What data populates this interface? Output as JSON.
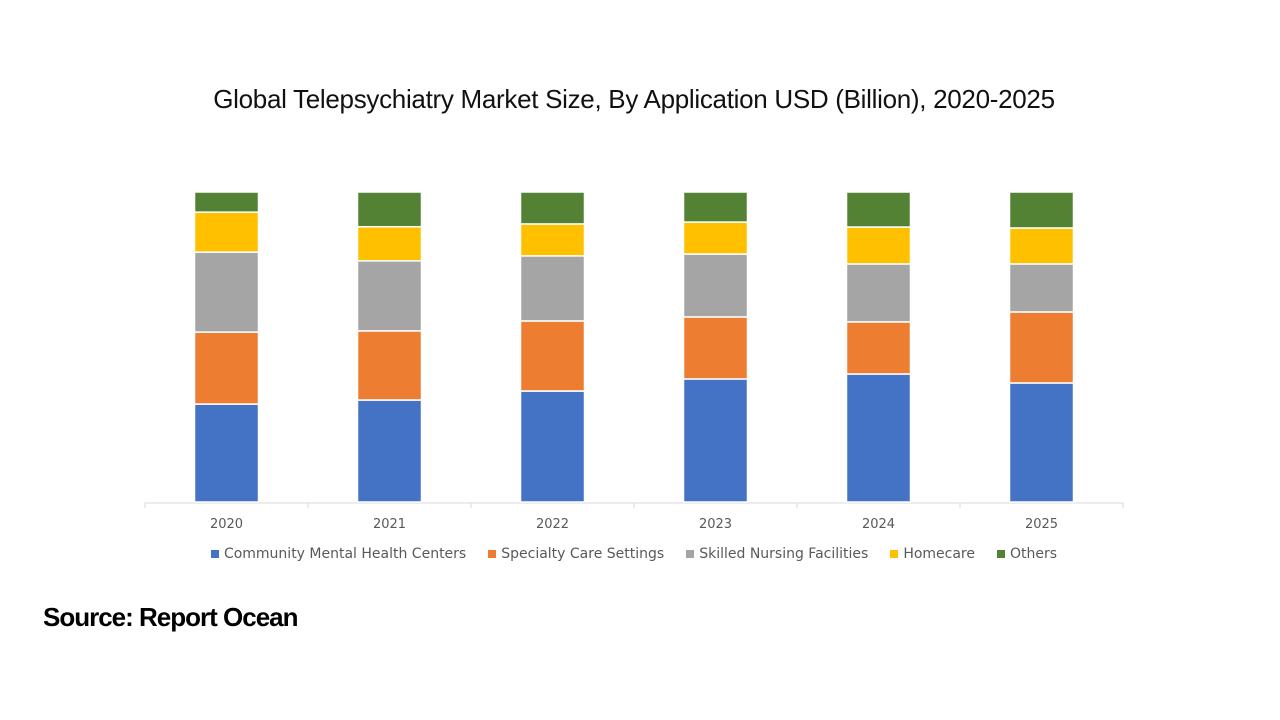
{
  "chart_data": {
    "type": "bar",
    "stacked": true,
    "normalized": true,
    "title": "Global Telepsychiatry Market Size, By Application USD (Billion), 2020-2025",
    "xlabel": "",
    "ylabel": "",
    "ylim": [
      0,
      100
    ],
    "grid": false,
    "legend_position": "bottom",
    "categories": [
      "2020",
      "2021",
      "2022",
      "2023",
      "2024",
      "2025"
    ],
    "series": [
      {
        "name": "Community Mental Health Centers",
        "color": "#4472C4",
        "values": [
          31.6,
          32.9,
          35.8,
          39.7,
          41.3,
          38.4
        ]
      },
      {
        "name": "Specialty Care Settings",
        "color": "#ED7D31",
        "values": [
          23.2,
          22.3,
          22.6,
          20.0,
          16.8,
          22.9
        ]
      },
      {
        "name": "Skilled Nursing Facilities",
        "color": "#A5A5A5",
        "values": [
          25.8,
          22.6,
          21.0,
          20.3,
          18.7,
          15.5
        ]
      },
      {
        "name": "Homecare",
        "color": "#FFC000",
        "values": [
          12.9,
          11.0,
          10.3,
          10.3,
          11.9,
          11.6
        ]
      },
      {
        "name": "Others",
        "color": "#548235",
        "values": [
          6.5,
          11.2,
          10.3,
          9.7,
          11.3,
          11.6
        ]
      }
    ]
  },
  "source": "Source: Report Ocean"
}
